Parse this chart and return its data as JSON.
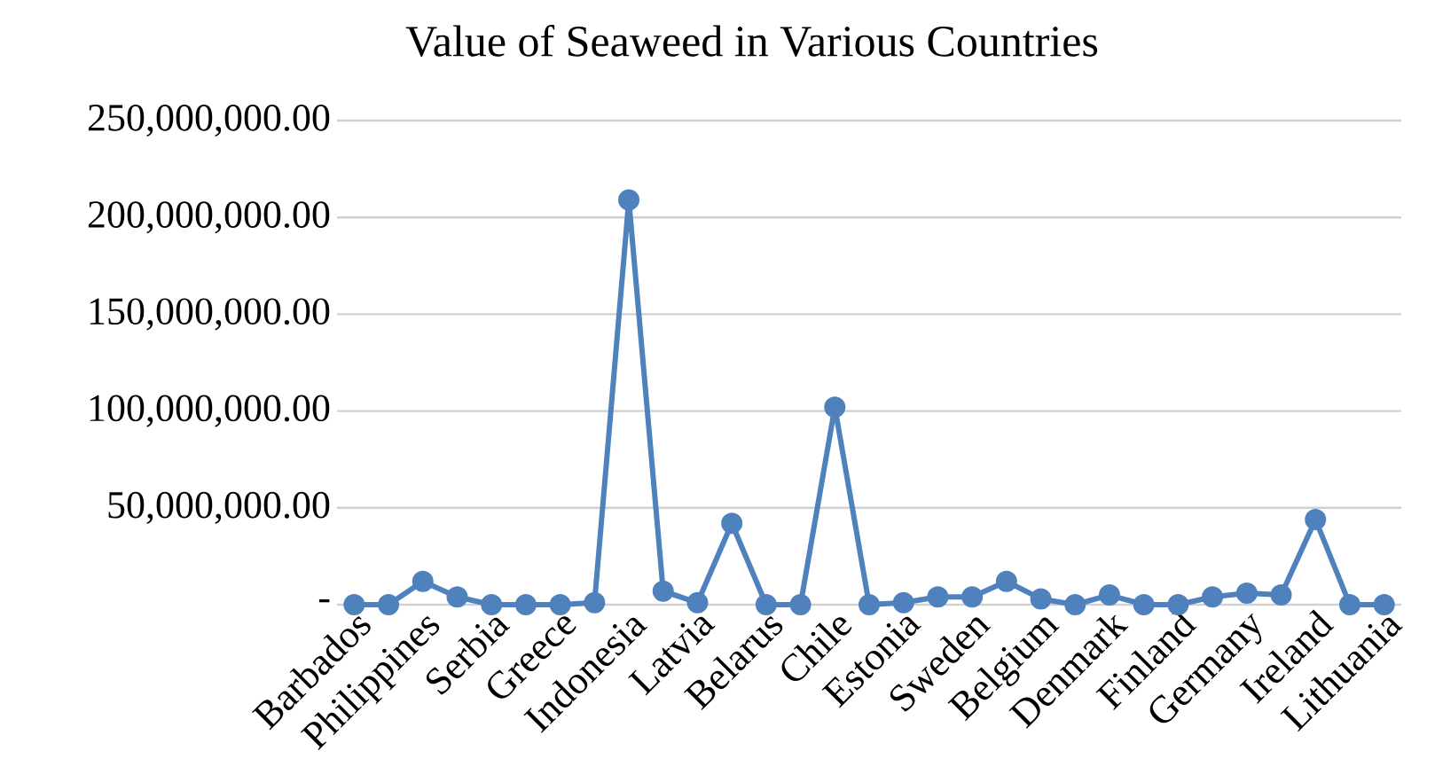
{
  "chart_data": {
    "type": "line",
    "title": "Value of Seaweed in Various Countries",
    "categories": [
      "Barbados",
      null,
      "Philippines",
      null,
      "Serbia",
      null,
      "Greece",
      null,
      "Indonesia",
      null,
      "Latvia",
      null,
      "Belarus",
      null,
      "Chile",
      null,
      "Estonia",
      null,
      "Sweden",
      null,
      "Belgium",
      null,
      "Denmark",
      null,
      "Finland",
      null,
      "Germany",
      null,
      "Ireland",
      null,
      "Lithuania"
    ],
    "series": [
      {
        "color": "#4f81bd",
        "values": [
          0,
          0,
          12000000,
          4000000,
          0,
          0,
          0,
          1000000,
          209000000,
          7000000,
          1000000,
          42000000,
          0,
          0,
          102000000,
          0,
          1000000,
          4000000,
          4000000,
          12000000,
          3000000,
          0,
          5000000,
          0,
          0,
          4000000,
          6000000,
          5000000,
          44000000,
          0,
          0
        ]
      }
    ],
    "ylim": [
      0,
      250000000
    ],
    "yticks": [
      {
        "value": 0,
        "label": "-"
      },
      {
        "value": 50000000,
        "label": "50,000,000.00"
      },
      {
        "value": 100000000,
        "label": "100,000,000.00"
      },
      {
        "value": 150000000,
        "label": "150,000,000.00"
      },
      {
        "value": 200000000,
        "label": "200,000,000.00"
      },
      {
        "value": 250000000,
        "label": "250,000,000.00"
      }
    ],
    "grid": "y",
    "marker": "circle",
    "line_style": "solid"
  }
}
